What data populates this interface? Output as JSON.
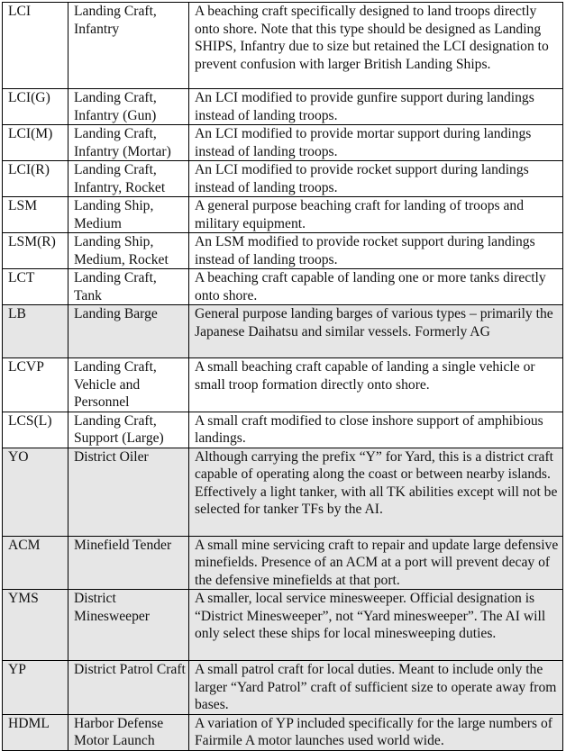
{
  "rows": [
    {
      "code": "LCI",
      "name": "Landing Craft, Infantry",
      "desc": "A beaching craft specifically designed to land troops directly onto shore.  Note that this type should be designed as Landing SHIPS, Infantry due to size but retained the LCI designation to prevent confusion with larger British Landing Ships.",
      "shaded": false
    },
    {
      "code": "LCI(G)",
      "name": "Landing Craft, Infantry (Gun)",
      "desc": "An LCI modified to provide gunfire support during landings instead of landing troops.",
      "shaded": false
    },
    {
      "code": "LCI(M)",
      "name": "Landing Craft, Infantry (Mortar)",
      "desc": "An LCI modified to provide mortar support during landings instead of landing troops.",
      "shaded": false
    },
    {
      "code": "LCI(R)",
      "name": "Landing Craft, Infantry, Rocket",
      "desc": "An LCI modified to provide rocket support during landings instead of landing troops.",
      "shaded": false
    },
    {
      "code": "LSM",
      "name": "Landing Ship, Medium",
      "desc": "A general purpose beaching craft for landing of troops and military equipment.",
      "shaded": false
    },
    {
      "code": "LSM(R)",
      "name": "Landing Ship, Medium, Rocket",
      "desc": "An LSM modified to provide rocket support during landings instead of landing troops.",
      "shaded": false
    },
    {
      "code": "LCT",
      "name": "Landing Craft, Tank",
      "desc": "A beaching craft capable of landing one or more tanks directly onto shore.",
      "shaded": false
    },
    {
      "code": "LB",
      "name": "Landing Barge",
      "desc": "General purpose landing barges of various types – primarily the Japanese Daihatsu and similar vessels. Formerly AG",
      "shaded": true
    },
    {
      "code": "LCVP",
      "name": "Landing Craft, Vehicle and Personnel",
      "desc": "A small beaching craft capable of landing a single vehicle or small troop formation directly onto shore.",
      "shaded": false
    },
    {
      "code": "LCS(L)",
      "name": "Landing Craft, Support (Large)",
      "desc": "A small craft modified to close inshore support of amphibious landings.",
      "shaded": false
    },
    {
      "code": "YO",
      "name": "District Oiler",
      "desc": "Although carrying the prefix “Y” for Yard, this is a district craft capable of operating along the coast or between nearby islands.   Effectively a light tanker, with all TK abilities except will not be selected for tanker TFs by the AI.",
      "shaded": true
    },
    {
      "code": "ACM",
      "name": "Minefield Tender",
      "desc": "A small mine servicing craft to repair and update large defensive minefields.  Presence of an ACM at a port will prevent decay of the defensive minefields at that port.",
      "shaded": true
    },
    {
      "code": "YMS",
      "name": "District Minesweeper",
      "desc": "A smaller, local service minesweeper.   Official designation is “District Minesweeper”, not “Yard minesweeper”.   The AI will only select these ships for local minesweeping duties.",
      "shaded": true
    },
    {
      "code": "YP",
      "name": "District Patrol Craft",
      "desc": "A small patrol craft for local duties.   Meant to include only the larger “Yard Patrol” craft of sufficient size to operate away from bases.",
      "shaded": true
    },
    {
      "code": "HDML",
      "name": "Harbor Defense Motor Launch",
      "desc": "A variation of YP included specifically for the large numbers of Fairmile A motor launches used world wide.",
      "shaded": true
    }
  ],
  "colors": {
    "shaded_row": "#e6e6e6",
    "border": "#000000"
  }
}
